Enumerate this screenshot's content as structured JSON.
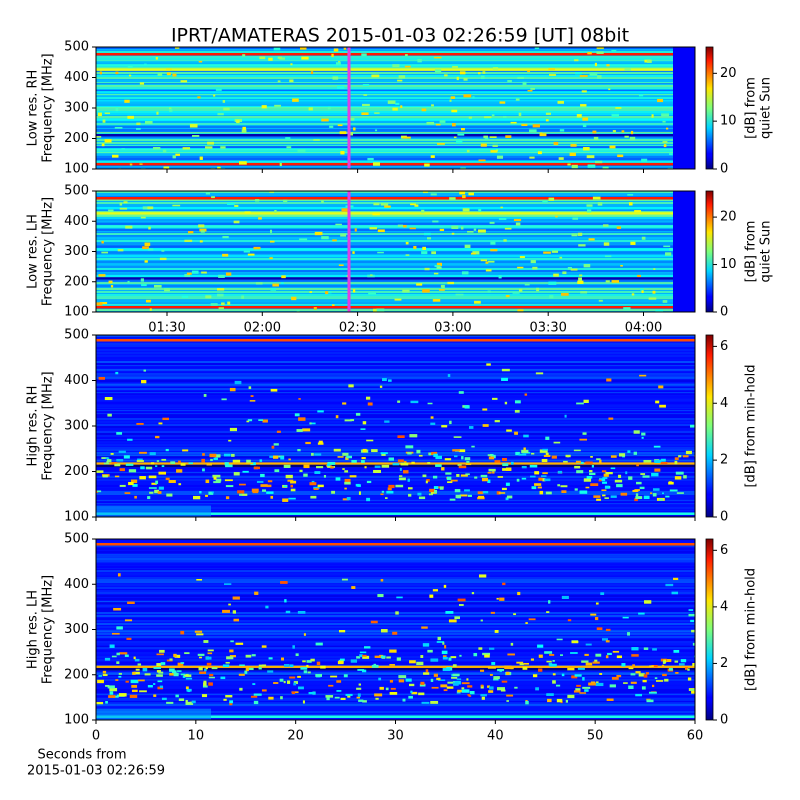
{
  "chart_data": [
    {
      "type": "heatmap",
      "title": "IPRT/AMATERAS 2015-01-03 02:26:59 [UT]   08bit",
      "ylabel": [
        "Low res. RH",
        "Frequency [MHz]"
      ],
      "ylim": [
        100,
        500
      ],
      "yticks": [
        100,
        200,
        300,
        400,
        500
      ],
      "colormap": "jet",
      "colorbar": {
        "label": [
          "[dB] from",
          "quiet Sun"
        ],
        "lim": [
          0,
          25.5
        ],
        "ticks": [
          0,
          10,
          20
        ]
      }
    },
    {
      "type": "heatmap",
      "ylabel": [
        "Low res. LH",
        "Frequency [MHz]"
      ],
      "ylim": [
        100,
        500
      ],
      "yticks": [
        100,
        200,
        300,
        400,
        500
      ],
      "xticks": [
        "01:30",
        "02:00",
        "02:30",
        "03:00",
        "03:30",
        "04:00"
      ],
      "colormap": "jet",
      "colorbar": {
        "label": [
          "[dB] from",
          "quiet Sun"
        ],
        "lim": [
          0,
          25.5
        ],
        "ticks": [
          0,
          10,
          20
        ]
      }
    },
    {
      "type": "heatmap",
      "ylabel": [
        "High res. RH",
        "Frequency [MHz]"
      ],
      "ylim": [
        100,
        500
      ],
      "yticks": [
        100,
        200,
        300,
        400,
        500
      ],
      "xlim": [
        0,
        60
      ],
      "colormap": "jet",
      "colorbar": {
        "label": [
          "[dB] from min-hold"
        ],
        "lim": [
          0,
          6.4
        ],
        "ticks": [
          0,
          2,
          4,
          6
        ]
      }
    },
    {
      "type": "heatmap",
      "ylabel": [
        "High res. LH",
        "Frequency [MHz]"
      ],
      "ylim": [
        100,
        500
      ],
      "yticks": [
        100,
        200,
        300,
        400,
        500
      ],
      "xlim": [
        0,
        60
      ],
      "xticks": [
        0,
        10,
        20,
        30,
        40,
        50,
        60
      ],
      "xlabel": [
        "Seconds from",
        "2015-01-03 02:26:59"
      ],
      "colormap": "jet",
      "colorbar": {
        "label": [
          "[dB] from min-hold"
        ],
        "lim": [
          0,
          6.4
        ],
        "ticks": [
          0,
          2,
          4,
          6
        ]
      }
    }
  ]
}
